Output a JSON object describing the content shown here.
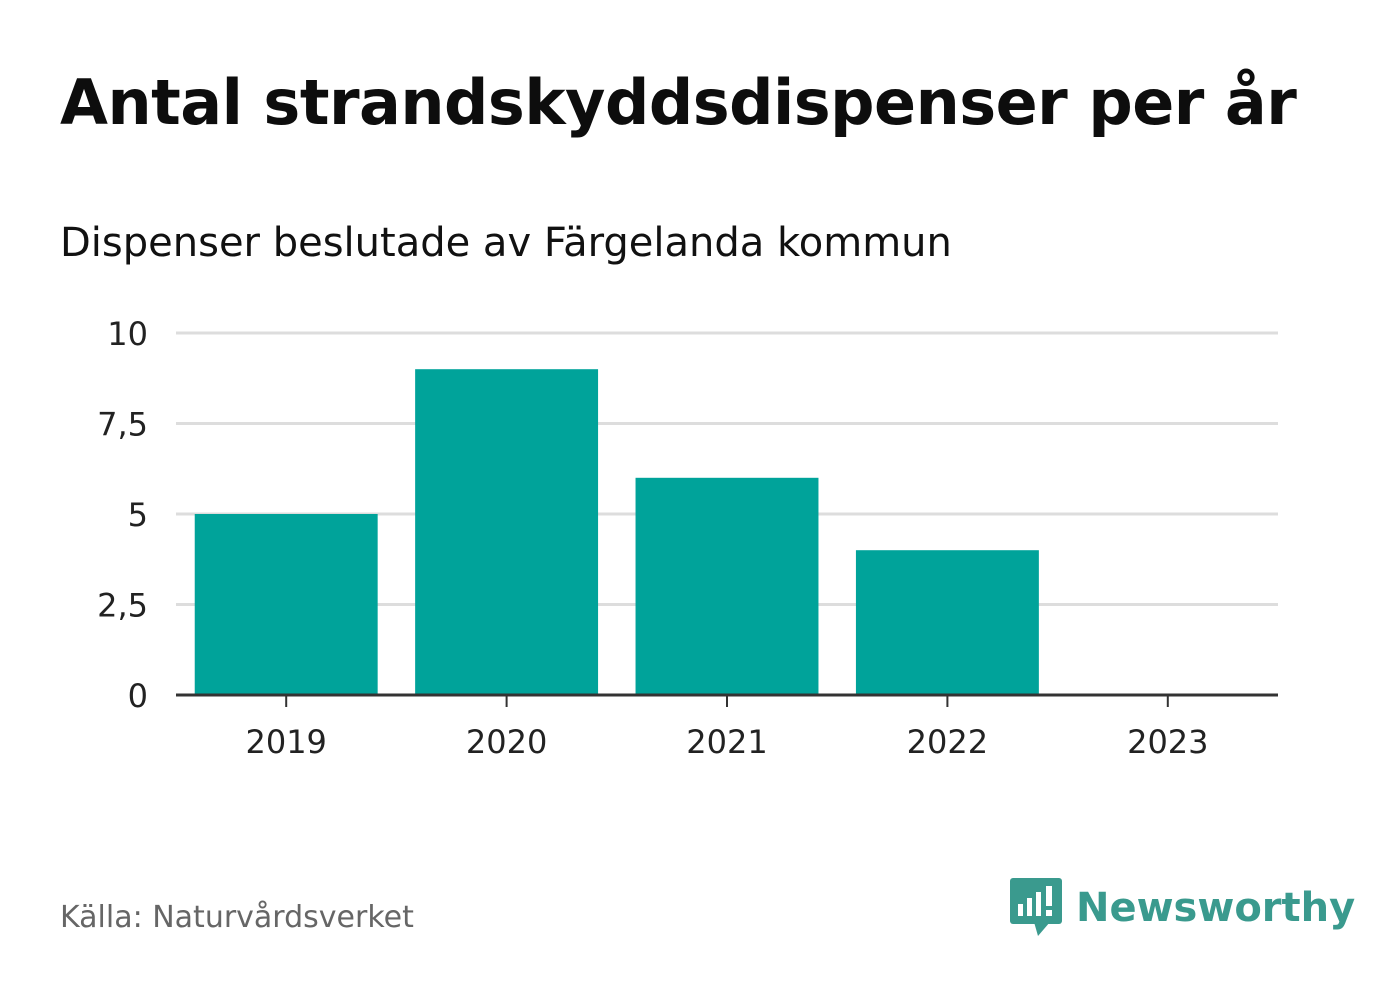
{
  "title": "Antal strandskyddsdispenser per år",
  "subtitle": "Dispenser beslutade av Färgelanda kommun",
  "source": "Källa: Naturvårdsverket",
  "brand": {
    "name": "Newsworthy",
    "icon": "newsworthy-logo-icon",
    "color": "#3a9a8e"
  },
  "colors": {
    "bar": "#00a39a",
    "grid": "#dddddd",
    "axis": "#333333",
    "tick_text": "#222222"
  },
  "chart_data": {
    "type": "bar",
    "title": "Antal strandskyddsdispenser per år",
    "xlabel": "",
    "ylabel": "",
    "categories": [
      "2019",
      "2020",
      "2021",
      "2022",
      "2023"
    ],
    "values": [
      5,
      9,
      6,
      4,
      0
    ],
    "ylim": [
      0,
      10
    ],
    "yticks": [
      0,
      2.5,
      5,
      7.5,
      10
    ],
    "ytick_labels": [
      "0",
      "2,5",
      "5",
      "7,5",
      "10"
    ],
    "grid": true,
    "legend": "none"
  }
}
